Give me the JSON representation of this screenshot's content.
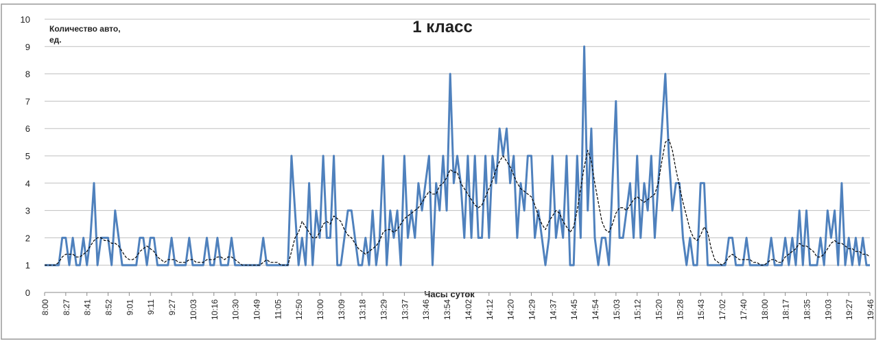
{
  "chart_data": {
    "type": "line",
    "title": "1 класс",
    "y_label": "Количество авто, ед.",
    "x_label": "Часы суток",
    "ylim": [
      0,
      10
    ],
    "yticks": [
      0,
      1,
      2,
      3,
      4,
      5,
      6,
      7,
      8,
      9,
      10
    ],
    "grid": true,
    "categories": [
      "8:00",
      null,
      null,
      null,
      null,
      null,
      "8:27",
      null,
      null,
      null,
      null,
      null,
      "8:41",
      null,
      null,
      null,
      null,
      null,
      "8:52",
      null,
      null,
      null,
      null,
      null,
      "9:01",
      null,
      null,
      null,
      null,
      null,
      "9:11",
      null,
      null,
      null,
      null,
      null,
      "9:27",
      null,
      null,
      null,
      null,
      null,
      "10:03",
      null,
      null,
      null,
      null,
      null,
      "10:16",
      null,
      null,
      null,
      null,
      null,
      "10:30",
      null,
      null,
      null,
      null,
      null,
      "10:49",
      null,
      null,
      null,
      null,
      null,
      "11:05",
      null,
      null,
      null,
      null,
      null,
      "12:50",
      null,
      null,
      null,
      null,
      null,
      "13:00",
      null,
      null,
      null,
      null,
      null,
      "13:09",
      null,
      null,
      null,
      null,
      null,
      "13:18",
      null,
      null,
      null,
      null,
      null,
      "13:29",
      null,
      null,
      null,
      null,
      null,
      "13:37",
      null,
      null,
      null,
      null,
      null,
      "13:46",
      null,
      null,
      null,
      null,
      null,
      "13:54",
      null,
      null,
      null,
      null,
      null,
      "14:02",
      null,
      null,
      null,
      null,
      null,
      "14:12",
      null,
      null,
      null,
      null,
      null,
      "14:20",
      null,
      null,
      null,
      null,
      null,
      "14:29",
      null,
      null,
      null,
      null,
      null,
      "14:37",
      null,
      null,
      null,
      null,
      null,
      "14:45",
      null,
      null,
      null,
      null,
      null,
      "14:54",
      null,
      null,
      null,
      null,
      null,
      "15:03",
      null,
      null,
      null,
      null,
      null,
      "15:12",
      null,
      null,
      null,
      null,
      null,
      "15:20",
      null,
      null,
      null,
      null,
      null,
      "15:28",
      null,
      null,
      null,
      null,
      null,
      "15:43",
      null,
      null,
      null,
      null,
      null,
      "17:02",
      null,
      null,
      null,
      null,
      null,
      "17:40",
      null,
      null,
      null,
      null,
      null,
      "18:00",
      null,
      null,
      null,
      null,
      null,
      "18:17",
      null,
      null,
      null,
      null,
      null,
      "18:35",
      null,
      null,
      null,
      null,
      null,
      "19:03",
      null,
      null,
      null,
      null,
      null,
      "19:27",
      null,
      null,
      null,
      null,
      null,
      "19:46"
    ],
    "series": [
      {
        "color": "#4f81bd",
        "style": "solid",
        "values": [
          1,
          1,
          1,
          1,
          1,
          2,
          2,
          1,
          2,
          1,
          1,
          2,
          1,
          2,
          4,
          1,
          2,
          2,
          2,
          1,
          3,
          2,
          1,
          1,
          1,
          1,
          1,
          2,
          2,
          1,
          2,
          2,
          1,
          1,
          1,
          1,
          2,
          1,
          1,
          1,
          1,
          2,
          1,
          1,
          1,
          1,
          2,
          1,
          1,
          2,
          1,
          1,
          1,
          2,
          1,
          1,
          1,
          1,
          1,
          1,
          1,
          1,
          2,
          1,
          1,
          1,
          1,
          1,
          1,
          1,
          5,
          3,
          1,
          2,
          1,
          4,
          1,
          3,
          2,
          5,
          2,
          2,
          5,
          1,
          1,
          2,
          3,
          3,
          2,
          1,
          1,
          2,
          1,
          3,
          1,
          2,
          5,
          1,
          3,
          2,
          3,
          1,
          5,
          2,
          3,
          2,
          4,
          3,
          4,
          5,
          1,
          4,
          3,
          5,
          3,
          8,
          4,
          5,
          4,
          2,
          5,
          2,
          5,
          2,
          2,
          5,
          2,
          5,
          4,
          6,
          5,
          6,
          4,
          5,
          2,
          4,
          3,
          5,
          5,
          2,
          3,
          2,
          1,
          2,
          5,
          2,
          3,
          2,
          5,
          1,
          1,
          5,
          2,
          9,
          3,
          6,
          2,
          1,
          2,
          2,
          1,
          4,
          7,
          2,
          2,
          3,
          4,
          2,
          5,
          2,
          4,
          3,
          5,
          2,
          4,
          6,
          8,
          5,
          3,
          4,
          4,
          2,
          1,
          2,
          1,
          1,
          4,
          4,
          1,
          1,
          1,
          1,
          1,
          1,
          2,
          2,
          1,
          1,
          1,
          2,
          1,
          1,
          1,
          1,
          1,
          1,
          2,
          1,
          1,
          1,
          2,
          1,
          2,
          1,
          3,
          1,
          3,
          1,
          1,
          1,
          2,
          1,
          3,
          2,
          3,
          1,
          4,
          1,
          2,
          1,
          2,
          1,
          2,
          1,
          1
        ]
      },
      {
        "color": "#000000",
        "style": "dashed",
        "values": [
          1,
          1,
          1,
          1,
          1.1,
          1.3,
          1.4,
          1.4,
          1.4,
          1.3,
          1.3,
          1.4,
          1.5,
          1.7,
          1.9,
          2,
          2,
          1.9,
          1.9,
          1.8,
          1.8,
          1.7,
          1.5,
          1.3,
          1.2,
          1.2,
          1.3,
          1.5,
          1.6,
          1.7,
          1.6,
          1.5,
          1.3,
          1.2,
          1.1,
          1.2,
          1.2,
          1.2,
          1.1,
          1.1,
          1.1,
          1.2,
          1.2,
          1.1,
          1.1,
          1.1,
          1.2,
          1.2,
          1.2,
          1.3,
          1.3,
          1.2,
          1.3,
          1.3,
          1.2,
          1.1,
          1,
          1,
          1,
          1,
          1,
          1,
          1.1,
          1.2,
          1.1,
          1.1,
          1.1,
          1,
          1,
          1,
          1.5,
          2,
          2.2,
          2.6,
          2.4,
          2.2,
          2,
          2,
          2.2,
          2.5,
          2.6,
          2.5,
          2.8,
          2.7,
          2.6,
          2.3,
          2.1,
          2,
          1.8,
          1.6,
          1.5,
          1.4,
          1.5,
          1.6,
          1.7,
          1.9,
          2.2,
          2.3,
          2.3,
          2.2,
          2.3,
          2.5,
          2.7,
          2.8,
          2.9,
          3,
          3.1,
          3.3,
          3.5,
          3.7,
          3.6,
          3.6,
          3.9,
          4,
          4.2,
          4.5,
          4.4,
          4.4,
          4,
          3.8,
          3.6,
          3.4,
          3.2,
          3.1,
          3.2,
          3.5,
          3.8,
          4.1,
          4.5,
          4.8,
          5,
          4.8,
          4.6,
          4.3,
          4,
          3.8,
          3.7,
          3.6,
          3.5,
          3.2,
          2.8,
          2.5,
          2.3,
          2.6,
          2.8,
          3,
          2.9,
          2.6,
          2.4,
          2.2,
          2.4,
          3,
          3.8,
          4.6,
          5.2,
          4.8,
          4,
          3.3,
          2.6,
          2.3,
          2.2,
          2.5,
          2.9,
          3.1,
          3.1,
          3,
          3.2,
          3.4,
          3.5,
          3.4,
          3.3,
          3.4,
          3.5,
          3.6,
          4,
          4.8,
          5.5,
          5.6,
          5.2,
          4.5,
          3.9,
          3.3,
          2.8,
          2.3,
          2,
          1.9,
          2.1,
          2.4,
          2.2,
          1.6,
          1.2,
          1.1,
          1,
          1.1,
          1.3,
          1.4,
          1.3,
          1.2,
          1.2,
          1.2,
          1.2,
          1.1,
          1.1,
          1,
          1,
          1.1,
          1.2,
          1.2,
          1.1,
          1.1,
          1.3,
          1.4,
          1.5,
          1.6,
          1.8,
          1.7,
          1.7,
          1.6,
          1.5,
          1.3,
          1.3,
          1.4,
          1.6,
          1.8,
          1.9,
          1.8,
          1.8,
          1.7,
          1.6,
          1.6,
          1.5,
          1.5,
          1.4,
          1.4,
          1.3
        ]
      }
    ]
  }
}
